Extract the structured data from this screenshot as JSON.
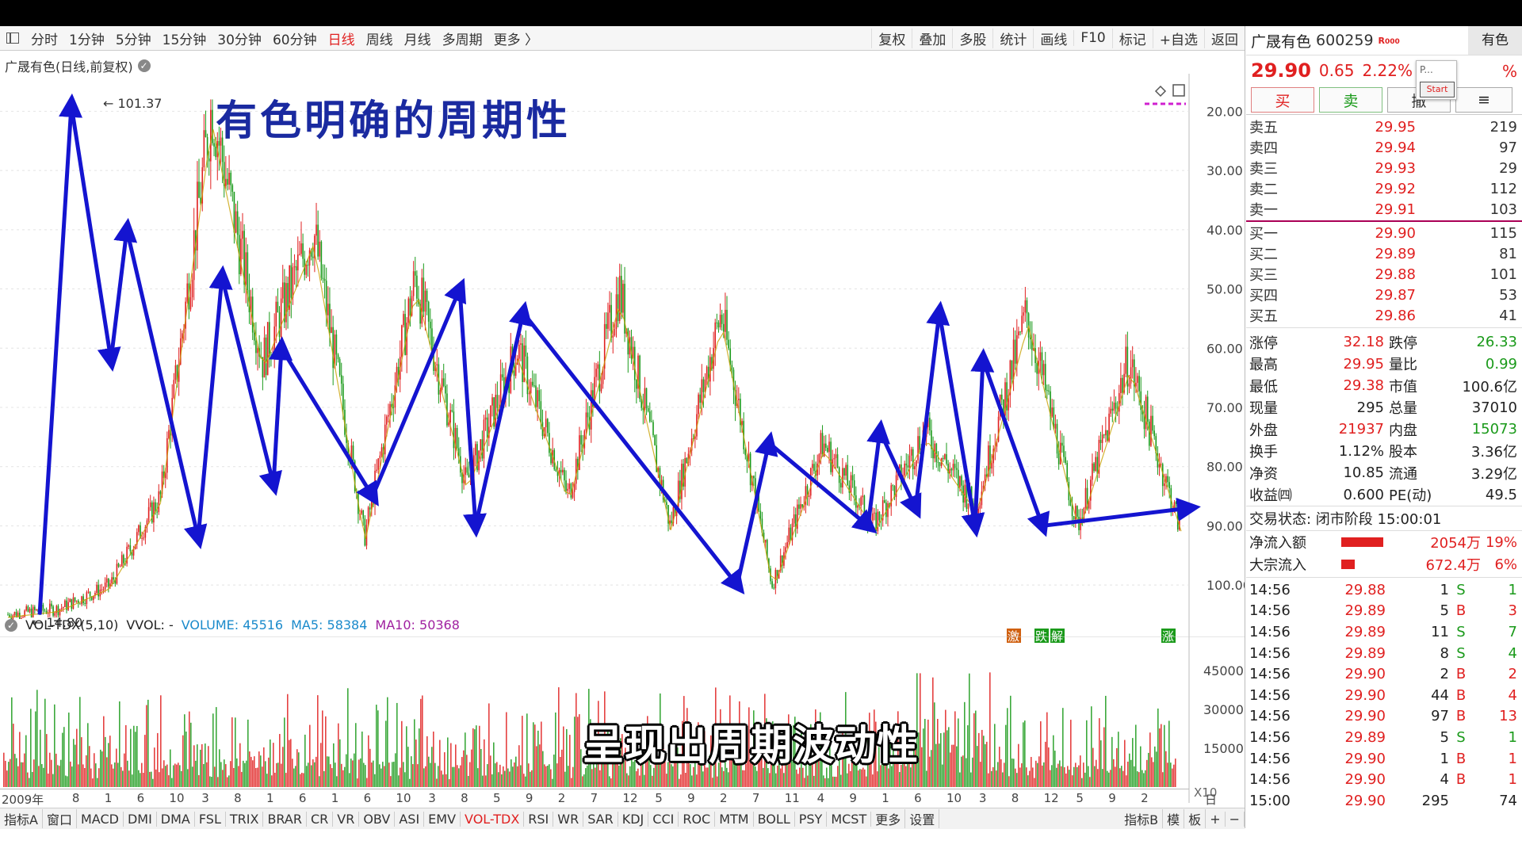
{
  "toolbar": {
    "periods": [
      "分时",
      "1分钟",
      "5分钟",
      "15分钟",
      "30分钟",
      "60分钟",
      "日线",
      "周线",
      "月线",
      "多周期",
      "更多 〉"
    ],
    "active_period": "日线",
    "tools": [
      "复权",
      "叠加",
      "多股",
      "统计",
      "画线",
      "F10",
      "标记",
      "+自选",
      "返回"
    ]
  },
  "chart": {
    "stock_label": "广晟有色(日线,前复权)",
    "high_label": "101.37",
    "low_label": "14.80",
    "headline": "有色明确的周期性",
    "y_ticks": [
      "100.00",
      "90.00",
      "80.00",
      "70.00",
      "60.00",
      "50.00",
      "40.00",
      "30.00",
      "20.00"
    ],
    "badges": [
      "激",
      "跌",
      "解",
      "涨"
    ]
  },
  "volume": {
    "indicator": "VOL-TDX(5,10)",
    "vvol": "VVOL: -",
    "volume": "VOLUME: 45516",
    "ma5": "MA5: 58384",
    "ma10": "MA10: 50368",
    "y_ticks": [
      "45000",
      "30000",
      "15000"
    ],
    "unit": "X10"
  },
  "date_axis": [
    "2009年",
    "8",
    "1",
    "6",
    "10",
    "3",
    "8",
    "1",
    "6",
    "1",
    "6",
    "10",
    "3",
    "8",
    "5",
    "9",
    "2",
    "7",
    "12",
    "5",
    "9",
    "2",
    "7",
    "11",
    "4",
    "9",
    "1",
    "6",
    "10",
    "3",
    "8",
    "12",
    "5",
    "9",
    "2"
  ],
  "date_axis_right": "日线",
  "bottom_tabs": [
    "指标A",
    "窗口",
    "MACD",
    "DMI",
    "DMA",
    "FSL",
    "TRIX",
    "BRAR",
    "CR",
    "VR",
    "OBV",
    "ASI",
    "EMV",
    "VOL-TDX",
    "RSI",
    "WR",
    "SAR",
    "KDJ",
    "CCI",
    "ROC",
    "MTM",
    "BOLL",
    "PSY",
    "MCST",
    "更多",
    "设置"
  ],
  "bottom_tabs_active": "VOL-TDX",
  "bottom_tabs_right": [
    "指标B",
    "模",
    "板",
    "+",
    "−"
  ],
  "subtitle": "呈现出周期波动性",
  "quote": {
    "name": "广晟有色",
    "code": "600259",
    "tag": "R",
    "tag2": "000",
    "sector": "有色",
    "price": "29.90",
    "change": "0.65",
    "pct": "2.22%",
    "pct_cut": "%",
    "popup_text": "P...",
    "popup_button": "Start",
    "buttons": {
      "buy": "买",
      "sell": "卖",
      "cancel": "撤"
    },
    "asks": [
      {
        "label": "卖五",
        "price": "29.95",
        "vol": "219"
      },
      {
        "label": "卖四",
        "price": "29.94",
        "vol": "97"
      },
      {
        "label": "卖三",
        "price": "29.93",
        "vol": "29"
      },
      {
        "label": "卖二",
        "price": "29.92",
        "vol": "112"
      },
      {
        "label": "卖一",
        "price": "29.91",
        "vol": "103"
      }
    ],
    "bids": [
      {
        "label": "买一",
        "price": "29.90",
        "vol": "115"
      },
      {
        "label": "买二",
        "price": "29.89",
        "vol": "81"
      },
      {
        "label": "买三",
        "price": "29.88",
        "vol": "101"
      },
      {
        "label": "买四",
        "price": "29.87",
        "vol": "53"
      },
      {
        "label": "买五",
        "price": "29.86",
        "vol": "41"
      }
    ],
    "stats": [
      {
        "l1": "涨停",
        "v1": "32.18",
        "c1": "red",
        "l2": "跌停",
        "v2": "26.33",
        "c2": "green"
      },
      {
        "l1": "最高",
        "v1": "29.95",
        "c1": "red",
        "l2": "量比",
        "v2": "0.99",
        "c2": "green"
      },
      {
        "l1": "最低",
        "v1": "29.38",
        "c1": "red",
        "l2": "市值",
        "v2": "100.6亿",
        "c2": "black"
      },
      {
        "l1": "现量",
        "v1": "295",
        "c1": "black",
        "l2": "总量",
        "v2": "37010",
        "c2": "black"
      },
      {
        "l1": "外盘",
        "v1": "21937",
        "c1": "red",
        "l2": "内盘",
        "v2": "15073",
        "c2": "green"
      },
      {
        "l1": "换手",
        "v1": "1.12%",
        "c1": "black",
        "l2": "股本",
        "v2": "3.36亿",
        "c2": "black"
      },
      {
        "l1": "净资",
        "v1": "10.85",
        "c1": "black",
        "l2": "流通",
        "v2": "3.29亿",
        "c2": "black"
      },
      {
        "l1": "收益㈣",
        "v1": "0.600",
        "c1": "black",
        "l2": "PE(动)",
        "v2": "49.5",
        "c2": "black"
      }
    ],
    "trade_status": "交易状态: 闭市阶段 15:00:01",
    "flows": [
      {
        "label": "净流入额",
        "value": "2054万",
        "pct": "19%",
        "fill": 0.19
      },
      {
        "label": "大宗流入",
        "value": "672.4万",
        "pct": "6%",
        "fill": 0.06
      }
    ],
    "ticks": [
      {
        "time": "14:56",
        "price": "29.88",
        "vol": "1",
        "side": "S",
        "n": "1"
      },
      {
        "time": "14:56",
        "price": "29.89",
        "vol": "5",
        "side": "B",
        "n": "3"
      },
      {
        "time": "14:56",
        "price": "29.89",
        "vol": "11",
        "side": "S",
        "n": "7"
      },
      {
        "time": "14:56",
        "price": "29.89",
        "vol": "8",
        "side": "S",
        "n": "4"
      },
      {
        "time": "14:56",
        "price": "29.90",
        "vol": "2",
        "side": "B",
        "n": "2"
      },
      {
        "time": "14:56",
        "price": "29.90",
        "vol": "44",
        "side": "B",
        "n": "4"
      },
      {
        "time": "14:56",
        "price": "29.90",
        "vol": "97",
        "side": "B",
        "n": "13"
      },
      {
        "time": "14:56",
        "price": "29.89",
        "vol": "5",
        "side": "S",
        "n": "1"
      },
      {
        "time": "14:56",
        "price": "29.90",
        "vol": "1",
        "side": "B",
        "n": "1"
      },
      {
        "time": "14:56",
        "price": "29.90",
        "vol": "4",
        "side": "B",
        "n": "1"
      },
      {
        "time": "15:00",
        "price": "29.90",
        "vol": "295",
        "side": "",
        "n": "74"
      }
    ]
  },
  "chart_data": {
    "type": "line",
    "series": [
      {
        "values": [
          15,
          16,
          20,
          35,
          101,
          58,
          80,
          28,
          72,
          37,
          60,
          35,
          70,
          30,
          66,
          20,
          44,
          30,
          46,
          33,
          66,
          30,
          58,
          30
        ]
      }
    ],
    "ylim": [
      14,
      105
    ],
    "y_ticks": [
      20,
      30,
      40,
      50,
      60,
      70,
      80,
      90,
      100
    ],
    "grid": true
  },
  "cycle_arrows": [
    15,
    101,
    58,
    80,
    28,
    72,
    37,
    60,
    35,
    70,
    30,
    66,
    20,
    44,
    30,
    46,
    33,
    66,
    30,
    58,
    30,
    33
  ],
  "colors": {
    "up": "#e02020",
    "down": "#1a9a1a",
    "arrow": "#1414d0",
    "ma": "#c8a000"
  }
}
